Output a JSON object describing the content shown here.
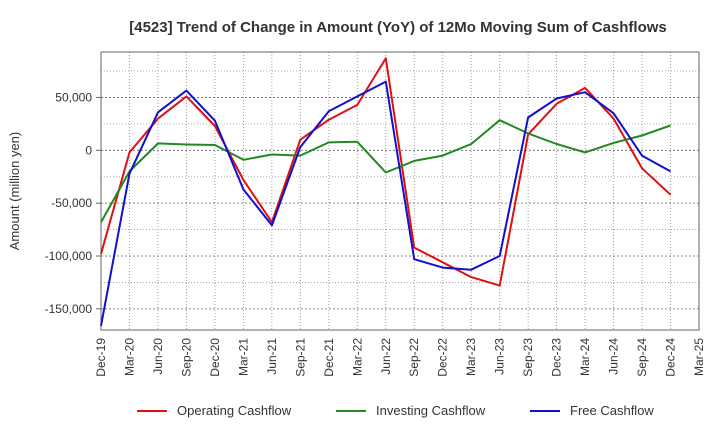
{
  "chart_data": {
    "type": "line",
    "title": "[4523]  Trend of Change in Amount (YoY) of 12Mo Moving Sum of Cashflows",
    "xlabel": "",
    "ylabel": "Amount (million yen)",
    "ylim": [
      -170000,
      93000
    ],
    "yticks": [
      50000,
      0,
      -50000,
      -100000,
      -150000
    ],
    "ytick_labels": [
      "50,000",
      "0",
      "-50,000",
      "-100,000",
      "-150,000"
    ],
    "categories": [
      "Dec-19",
      "Mar-20",
      "Jun-20",
      "Sep-20",
      "Dec-20",
      "Mar-21",
      "Jun-21",
      "Sep-21",
      "Dec-21",
      "Mar-22",
      "Jun-22",
      "Sep-22",
      "Dec-22",
      "Mar-23",
      "Jun-23",
      "Sep-23",
      "Dec-23",
      "Mar-24",
      "Jun-24",
      "Sep-24",
      "Dec-24",
      "Mar-25"
    ],
    "grid": true,
    "legend_position": "bottom",
    "series": [
      {
        "name": "Operating Cashflow",
        "color": "#dd1111",
        "values": [
          -98000,
          -2000,
          30000,
          51000,
          23000,
          -28000,
          -68000,
          10000,
          29000,
          43000,
          87000,
          -92000,
          -106000,
          -120000,
          -128000,
          15000,
          44000,
          59000,
          30000,
          -17000,
          -42000,
          null
        ]
      },
      {
        "name": "Investing Cashflow",
        "color": "#228822",
        "values": [
          -68000,
          -20000,
          6500,
          5500,
          5000,
          -9000,
          -4000,
          -5000,
          7500,
          8000,
          -21000,
          -10000,
          -5000,
          6000,
          28500,
          16000,
          6000,
          -2000,
          7000,
          14000,
          23500,
          null
        ]
      },
      {
        "name": "Free Cashflow",
        "color": "#1111cc",
        "values": [
          -166000,
          -22000,
          36000,
          56500,
          28000,
          -37000,
          -71000,
          3000,
          37000,
          51000,
          65000,
          -103000,
          -111000,
          -113000,
          -100000,
          31000,
          49000,
          55000,
          35000,
          -5000,
          -20000,
          null
        ]
      }
    ]
  }
}
